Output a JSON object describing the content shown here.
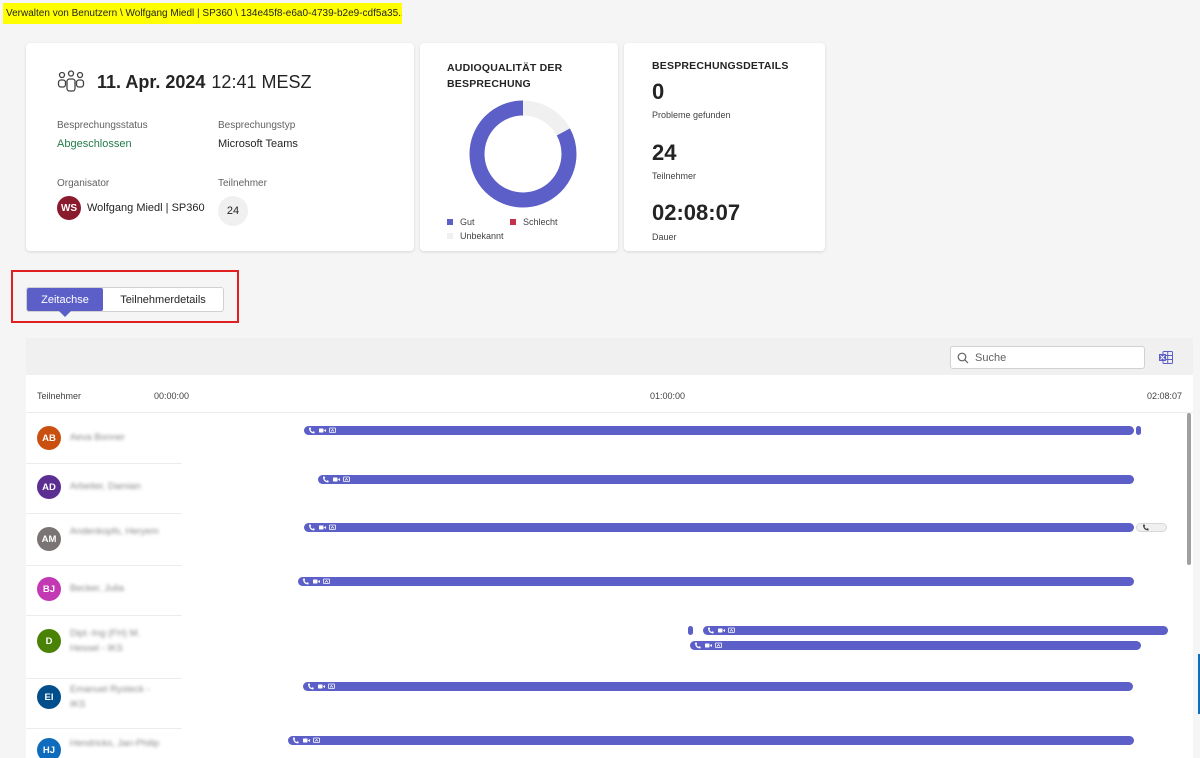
{
  "breadcrumb": "Verwalten von Benutzern \\ Wolfgang Miedl | SP360 \\ 134e45f8-e6a0-4739-b2e9-cdf5a35...",
  "meeting": {
    "date": "11. Apr. 2024",
    "time": "12:41 MESZ",
    "status_label": "Besprechungsstatus",
    "status_value": "Abgeschlossen",
    "type_label": "Besprechungstyp",
    "type_value": "Microsoft Teams",
    "organizer_label": "Organisator",
    "organizer_initials": "WS",
    "organizer_name": "Wolfgang Miedl | SP360",
    "participants_label": "Teilnehmer",
    "participants_value": "24"
  },
  "audio": {
    "title_line1": "AUDIOQUALITÄT DER",
    "title_line2": "BESPRECHUNG",
    "good_fraction": 0.83,
    "legend": {
      "good": "Gut",
      "bad": "Schlecht",
      "unknown": "Unbekannt"
    },
    "colors": {
      "good": "#5b5fc7",
      "bad": "#c4314b",
      "unknown": "#f0f0f0"
    }
  },
  "details": {
    "title": "BESPRECHUNGSDETAILS",
    "problems_value": "0",
    "problems_label": "Probleme gefunden",
    "participants_value": "24",
    "participants_label": "Teilnehmer",
    "duration_value": "02:08:07",
    "duration_label": "Dauer"
  },
  "tabs": {
    "timeline": "Zeitachse",
    "participant_details": "Teilnehmerdetails"
  },
  "timeline": {
    "search_placeholder": "Suche",
    "col_participant": "Teilnehmer",
    "tick_start": "00:00:00",
    "tick_mid": "01:00:00",
    "tick_end": "02:08:07",
    "rows": [
      {
        "initials": "AB",
        "color": "#ca5010",
        "name": "Aeva Bonner"
      },
      {
        "initials": "AD",
        "color": "#5c2e91",
        "name": "Arbeiter, Damian"
      },
      {
        "initials": "AM",
        "color": "#7a7574",
        "name": "Andenkopfs, Heryem"
      },
      {
        "initials": "BJ",
        "color": "#c239b3",
        "name": "Becker, Julia"
      },
      {
        "initials": "D",
        "color": "#498205",
        "name": "Dipl.-Ing (FH) M. Hessel - IKS"
      },
      {
        "initials": "EI",
        "color": "#004e8c",
        "name": "Emanuel Rysteck - IKS"
      },
      {
        "initials": "HJ",
        "color": "#0f6cbd",
        "name": "Hendricks, Jan-Philip"
      }
    ]
  },
  "colors": {
    "accent": "#5b5fc7",
    "status_green": "#237b4b",
    "organizer_avatar": "#8a1a2d"
  }
}
